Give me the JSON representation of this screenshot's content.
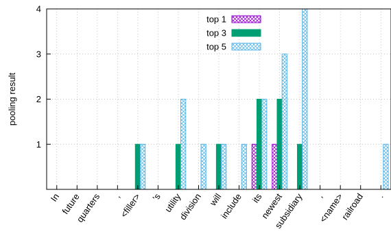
{
  "chart_data": {
    "type": "bar",
    "ylabel": "pooling result",
    "ylim": [
      0,
      4
    ],
    "yticks": [
      1,
      2,
      3,
      4
    ],
    "grid": true,
    "legend_position": "top-center",
    "categories": [
      "In",
      "future",
      "quarters",
      ",",
      "<filler>",
      "'s",
      "utility",
      "division",
      "will",
      "include",
      "its",
      "newest",
      "subsidiary",
      ",",
      "<name>",
      "railroad",
      "."
    ],
    "series": [
      {
        "name": "top 1",
        "color": "#9400d3",
        "pattern": "crosshatch",
        "values": [
          0,
          0,
          0,
          0,
          0,
          0,
          0,
          0,
          0,
          0,
          1,
          1,
          0,
          0,
          0,
          0,
          0
        ]
      },
      {
        "name": "top 3",
        "color": "#009e73",
        "pattern": "solid",
        "values": [
          0,
          0,
          0,
          0,
          1,
          0,
          1,
          0,
          1,
          0,
          2,
          2,
          1,
          0,
          0,
          0,
          0
        ]
      },
      {
        "name": "top 5",
        "color": "#56b4e9",
        "pattern": "crosshatch",
        "values": [
          0,
          0,
          0,
          0,
          1,
          0,
          2,
          1,
          1,
          1,
          2,
          3,
          4,
          0,
          0,
          0,
          1
        ]
      }
    ]
  }
}
